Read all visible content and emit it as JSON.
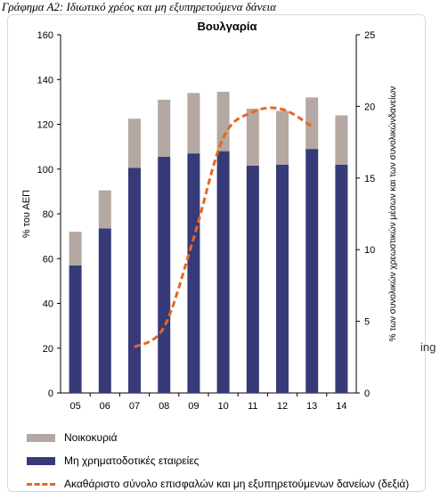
{
  "caption": "Γράφημα Α2: Ιδιωτικό χρέος και μη εξυπηρετούμενα δάνεια",
  "stray_text": "ing",
  "colors": {
    "households": "#b5a7a1",
    "nfc": "#373a78",
    "npl": "#e9661e"
  },
  "chart_data": {
    "type": "bar",
    "title": "Βουλγαρία",
    "categories": [
      "05",
      "06",
      "07",
      "08",
      "09",
      "10",
      "11",
      "12",
      "13",
      "14"
    ],
    "series": [
      {
        "name": "Μη χρηματοδοτικές εταιρείες",
        "axis": "left",
        "stack": true,
        "values": [
          57,
          73.5,
          100.5,
          105.5,
          107,
          108,
          101.5,
          102,
          109,
          102
        ]
      },
      {
        "name": "Νοικοκυριά",
        "axis": "left",
        "stack": true,
        "values": [
          15,
          17,
          22,
          25.5,
          27,
          26.5,
          25.5,
          24,
          23,
          22
        ]
      },
      {
        "name": "Ακαθάριστο σύνολο επισφαλών και μη εξυπηρετούμενων δανείων (δεξιά)",
        "axis": "right",
        "type": "line",
        "style": "dashed",
        "values": [
          null,
          null,
          3.2,
          4.6,
          10.8,
          17.8,
          19.6,
          19.8,
          18.6,
          null
        ]
      }
    ],
    "ylabel": "% του ΑΕΠ",
    "y2label": "% των συνολικών χρεωστικών μέσων και των συνολικώνδανείων",
    "ylim": [
      0,
      160
    ],
    "yticks": [
      "0",
      "20",
      "40",
      "60",
      "80",
      "100",
      "120",
      "140",
      "160"
    ],
    "y2lim": [
      0,
      25
    ],
    "y2ticks": [
      "0",
      "5",
      "10",
      "15",
      "20",
      "25"
    ],
    "legend_position": "bottom"
  }
}
